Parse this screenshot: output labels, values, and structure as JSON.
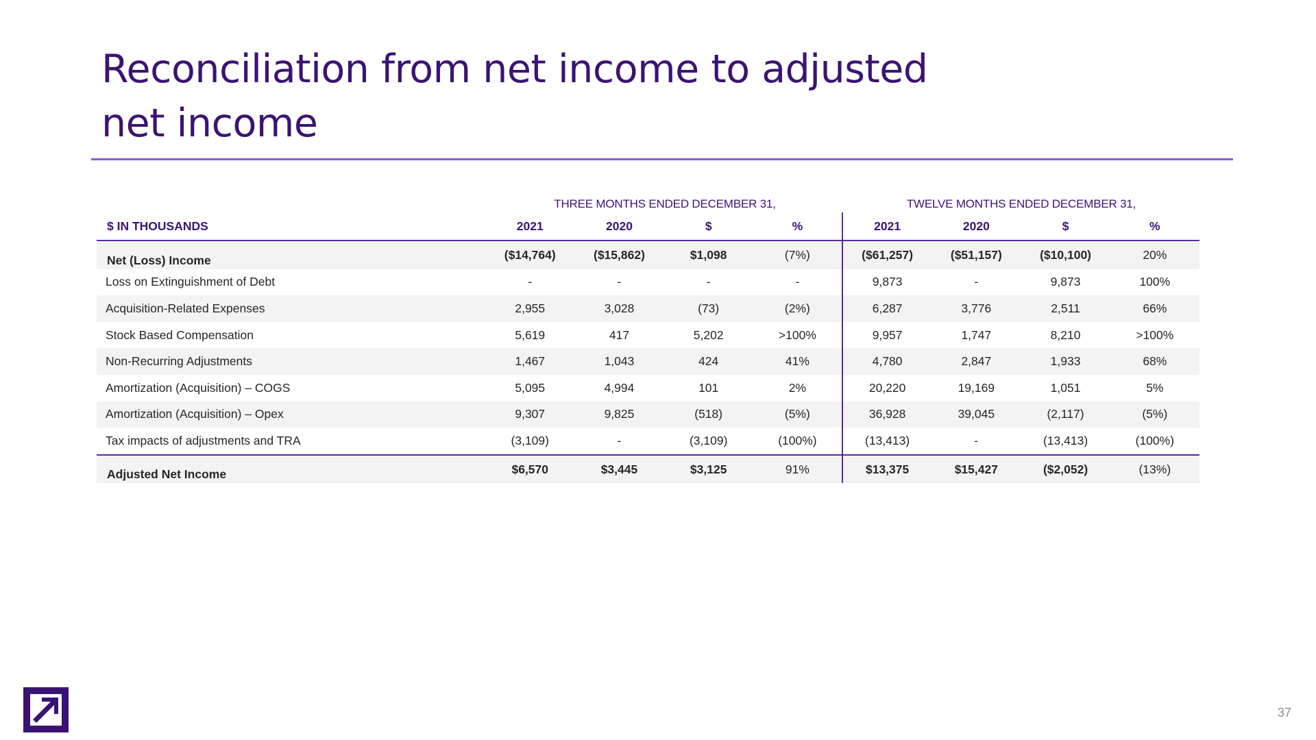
{
  "title": {
    "line1": "Reconciliation from net income to adjusted",
    "line2": "net income"
  },
  "periods": {
    "three_months": "THREE MONTHS ENDED DECEMBER 31,",
    "twelve_months": "TWELVE MONTHS ENDED DECEMBER 31,"
  },
  "table": {
    "headers": [
      "$ IN THOUSANDS",
      "2021",
      "2020",
      "$",
      "%",
      "2021",
      "2020",
      "$",
      "%"
    ],
    "rows": [
      {
        "label": "Net (Loss) Income",
        "values": [
          "($14,764)",
          "($15,862)",
          "$1,098",
          "(7%)",
          "($61,257)",
          "($51,157)",
          "($10,100)",
          "20%"
        ]
      },
      {
        "label": "Loss on Extinguishment of Debt",
        "values": [
          "-",
          "-",
          "-",
          "-",
          "9,873",
          "-",
          "9,873",
          "100%"
        ]
      },
      {
        "label": "Acquisition-Related Expenses",
        "values": [
          "2,955",
          "3,028",
          "(73)",
          "(2%)",
          "6,287",
          "3,776",
          "2,511",
          "66%"
        ]
      },
      {
        "label": "Stock Based Compensation",
        "values": [
          "5,619",
          "417",
          "5,202",
          ">100%",
          "9,957",
          "1,747",
          "8,210",
          ">100%"
        ]
      },
      {
        "label": "Non-Recurring Adjustments",
        "values": [
          "1,467",
          "1,043",
          "424",
          "41%",
          "4,780",
          "2,847",
          "1,933",
          "68%"
        ]
      },
      {
        "label": "Amortization (Acquisition) – COGS",
        "values": [
          "5,095",
          "4,994",
          "101",
          "2%",
          "20,220",
          "19,169",
          "1,051",
          "5%"
        ]
      },
      {
        "label": "Amortization (Acquisition) – Opex",
        "values": [
          "9,307",
          "9,825",
          "(518)",
          "(5%)",
          "36,928",
          "39,045",
          "(2,117)",
          "(5%)"
        ]
      },
      {
        "label": "Tax impacts of adjustments and TRA",
        "values": [
          "(3,109)",
          "-",
          "(3,109)",
          "(100%)",
          "(13,413)",
          "-",
          "(13,413)",
          "(100%)"
        ]
      },
      {
        "label": "Adjusted Net Income",
        "values": [
          "$6,570",
          "$3,445",
          "$3,125",
          "91%",
          "$13,375",
          "$15,427",
          "($2,052)",
          "(13%)"
        ]
      }
    ]
  },
  "footer": {
    "page_number": "37",
    "logo_icon": "arrow-up-right-logo-icon"
  },
  "colors": {
    "brand_purple": "#3a1473",
    "rule_purple": "#8a5bd6",
    "row_shade": "#f3f3f3"
  }
}
